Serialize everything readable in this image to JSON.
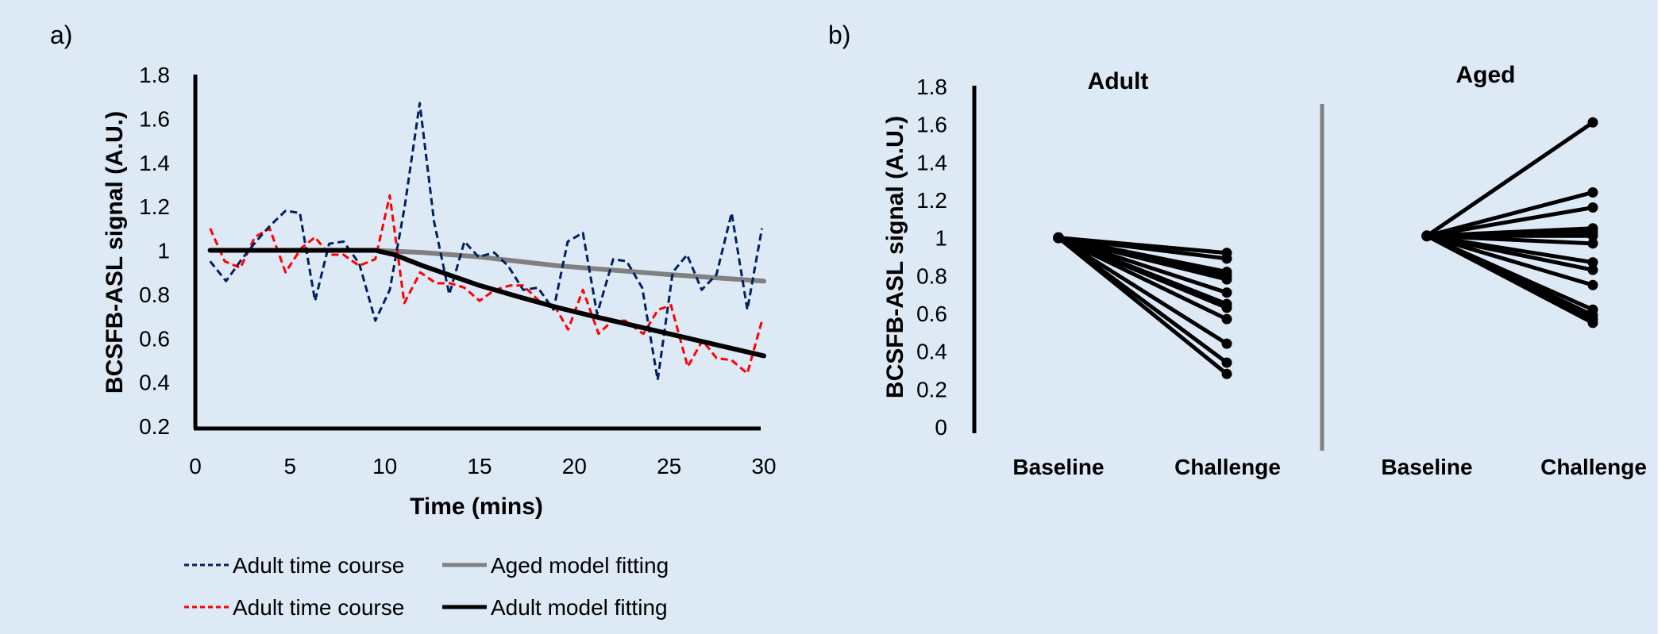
{
  "panels": {
    "a_label": "a)",
    "b_label": "b)"
  },
  "chart_data": [
    {
      "id": "a",
      "type": "line",
      "title": "",
      "xlabel": "Time (mins)",
      "ylabel": "BCSFB-ASL signal (A.U.)",
      "xlim": [
        0,
        30
      ],
      "ylim": [
        0.2,
        1.8
      ],
      "xticks": [
        "0",
        "5",
        "10",
        "15",
        "20",
        "25",
        "30"
      ],
      "yticks": [
        "0.2",
        "0.4",
        "0.6",
        "0.8",
        "1",
        "1.2",
        "1.4",
        "1.6",
        "1.8"
      ],
      "grid": false,
      "legend": {
        "placement": "bottom",
        "entries": [
          {
            "label": "Adult time course",
            "series": "blue_tc"
          },
          {
            "label": "Aged model fitting",
            "series": "aged_fit"
          },
          {
            "label": "Adult time course",
            "series": "red_tc"
          },
          {
            "label": "Adult model fitting",
            "series": "adult_fit"
          }
        ]
      },
      "series": [
        {
          "key": "blue_tc",
          "name": "Adult time course",
          "color": "#002060",
          "style": "dashed",
          "x": [
            0.78,
            1.62,
            2.45,
            3.2,
            3.92,
            4.76,
            5.52,
            6.32,
            7.06,
            7.82,
            8.65,
            9.5,
            10.26,
            11.05,
            11.84,
            12.6,
            13.4,
            14.2,
            14.94,
            15.77,
            16.5,
            17.3,
            18.08,
            18.9,
            19.65,
            20.45,
            21.2,
            22.05,
            22.76,
            23.58,
            24.4,
            25.19,
            25.95,
            26.72,
            27.5,
            28.3,
            29.13,
            29.9
          ],
          "y": [
            0.95,
            0.86,
            0.96,
            1.04,
            1.11,
            1.18,
            1.17,
            0.77,
            1.03,
            1.04,
            0.94,
            0.68,
            0.82,
            1.2,
            1.67,
            1.13,
            0.8,
            1.04,
            0.97,
            0.99,
            0.93,
            0.82,
            0.83,
            0.73,
            1.04,
            1.08,
            0.71,
            0.96,
            0.95,
            0.83,
            0.41,
            0.9,
            0.98,
            0.82,
            0.89,
            1.17,
            0.73,
            1.1
          ]
        },
        {
          "key": "red_tc",
          "name": "Adult time course",
          "color": "#ff0000",
          "style": "dashed",
          "x": [
            0.78,
            1.55,
            2.38,
            3.14,
            3.92,
            4.76,
            5.59,
            6.32,
            7.06,
            7.82,
            8.65,
            9.5,
            10.26,
            11.03,
            11.87,
            12.7,
            13.47,
            14.2,
            15.0,
            15.8,
            16.6,
            17.3,
            18.14,
            19.0,
            19.67,
            20.45,
            21.28,
            22.0,
            22.68,
            23.64,
            24.42,
            25.1,
            25.98,
            26.76,
            27.5,
            28.3,
            29.13,
            29.9
          ],
          "y": [
            1.1,
            0.95,
            0.92,
            1.06,
            1.1,
            0.9,
            1.01,
            1.06,
            0.98,
            0.98,
            0.93,
            0.96,
            1.25,
            0.76,
            0.9,
            0.85,
            0.85,
            0.83,
            0.77,
            0.82,
            0.84,
            0.84,
            0.77,
            0.74,
            0.64,
            0.82,
            0.62,
            0.68,
            0.68,
            0.62,
            0.73,
            0.75,
            0.47,
            0.59,
            0.51,
            0.5,
            0.44,
            0.68
          ]
        },
        {
          "key": "aged_fit",
          "name": "Aged model fitting",
          "color": "#808080",
          "style": "solid",
          "x": [
            0.78,
            9.5,
            12,
            15,
            19.1,
            22,
            25,
            30
          ],
          "y": [
            1.0,
            1.0,
            0.99,
            0.97,
            0.93,
            0.91,
            0.89,
            0.86
          ]
        },
        {
          "key": "adult_fit",
          "name": "Adult model fitting",
          "color": "#000000",
          "style": "solid",
          "x": [
            0.78,
            9.5,
            10.5,
            12,
            15,
            17,
            19.1,
            21,
            23,
            25,
            27,
            30
          ],
          "y": [
            1.0,
            1.0,
            0.98,
            0.93,
            0.84,
            0.79,
            0.74,
            0.7,
            0.66,
            0.62,
            0.58,
            0.52
          ]
        }
      ]
    },
    {
      "id": "b",
      "type": "line",
      "title": "",
      "ylabel": "BCSFB-ASL signal (A.U.)",
      "ylim": [
        0,
        1.8
      ],
      "yticks": [
        "0",
        "0.2",
        "0.4",
        "0.6",
        "0.8",
        "1",
        "1.2",
        "1.4",
        "1.6",
        "1.8"
      ],
      "grid": false,
      "categories": [
        "Baseline",
        "Challenge"
      ],
      "groups": [
        {
          "name": "Adult",
          "baseline": 1.0,
          "challenge": [
            0.92,
            0.89,
            0.82,
            0.8,
            0.78,
            0.71,
            0.65,
            0.63,
            0.57,
            0.44,
            0.34,
            0.28
          ]
        },
        {
          "name": "Aged",
          "baseline": 1.01,
          "challenge": [
            1.61,
            1.24,
            1.16,
            1.05,
            1.03,
            1.01,
            0.97,
            0.87,
            0.83,
            0.75,
            0.62,
            0.59,
            0.57,
            0.55
          ]
        }
      ]
    }
  ]
}
